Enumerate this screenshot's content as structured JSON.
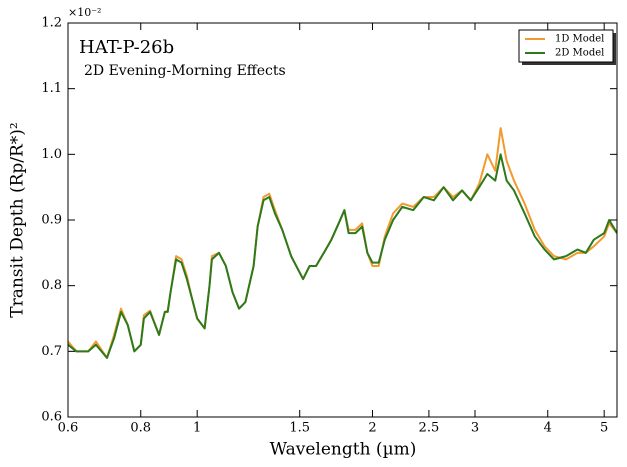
{
  "chart_data": {
    "type": "line",
    "title": "HAT-P-26b",
    "subtitle": "2D Evening-Morning Effects",
    "x_label": "Wavelength (µm)",
    "y_label": "Transit Depth (Rp/R*)²",
    "y_multiplier": "×10⁻²",
    "x_scale": "log",
    "legend": "upper right",
    "grid": false,
    "xlim": [
      0.6,
      5.26
    ],
    "xticks": [
      0.6,
      0.8,
      1,
      1.5,
      2,
      2.5,
      3,
      4,
      5
    ],
    "ylim": [
      0.6,
      1.2
    ],
    "yticks": [
      0.6,
      0.7,
      0.8,
      0.9,
      {
        "value": 1,
        "label": "1.0"
      },
      1.1,
      1.2
    ],
    "x": [
      0.6,
      0.62,
      0.65,
      0.67,
      0.7,
      0.72,
      0.74,
      0.76,
      0.78,
      0.8,
      0.81,
      0.83,
      0.86,
      0.88,
      0.89,
      0.9,
      0.92,
      0.94,
      0.96,
      0.98,
      1.0,
      1.03,
      1.05,
      1.06,
      1.09,
      1.12,
      1.15,
      1.18,
      1.21,
      1.25,
      1.27,
      1.3,
      1.33,
      1.36,
      1.4,
      1.45,
      1.52,
      1.56,
      1.6,
      1.65,
      1.7,
      1.75,
      1.79,
      1.82,
      1.87,
      1.92,
      1.96,
      2.0,
      2.05,
      2.1,
      2.17,
      2.25,
      2.35,
      2.45,
      2.55,
      2.65,
      2.75,
      2.85,
      2.95,
      3.05,
      3.15,
      3.25,
      3.32,
      3.4,
      3.5,
      3.65,
      3.8,
      3.95,
      4.1,
      4.3,
      4.5,
      4.65,
      4.8,
      5.0,
      5.1,
      5.26
    ],
    "series": [
      {
        "name": "1D Model",
        "color": "#f29a30",
        "values": [
          0.715,
          0.7,
          0.7,
          0.715,
          0.69,
          0.725,
          0.765,
          0.74,
          0.7,
          0.71,
          0.755,
          0.762,
          0.725,
          0.76,
          0.762,
          0.79,
          0.845,
          0.84,
          0.815,
          0.78,
          0.75,
          0.735,
          0.8,
          0.845,
          0.85,
          0.83,
          0.79,
          0.765,
          0.775,
          0.83,
          0.89,
          0.935,
          0.94,
          0.915,
          0.885,
          0.845,
          0.81,
          0.83,
          0.83,
          0.85,
          0.87,
          0.895,
          0.915,
          0.885,
          0.885,
          0.895,
          0.85,
          0.83,
          0.83,
          0.875,
          0.91,
          0.925,
          0.92,
          0.935,
          0.935,
          0.95,
          0.935,
          0.945,
          0.93,
          0.955,
          1.0,
          0.975,
          1.04,
          0.99,
          0.96,
          0.925,
          0.885,
          0.86,
          0.845,
          0.84,
          0.85,
          0.85,
          0.86,
          0.875,
          0.895,
          0.88
        ]
      },
      {
        "name": "2D Model",
        "color": "#2b7a1c",
        "values": [
          0.71,
          0.7,
          0.7,
          0.71,
          0.69,
          0.72,
          0.76,
          0.74,
          0.7,
          0.71,
          0.75,
          0.76,
          0.725,
          0.76,
          0.76,
          0.79,
          0.84,
          0.835,
          0.81,
          0.78,
          0.75,
          0.735,
          0.8,
          0.84,
          0.85,
          0.83,
          0.79,
          0.765,
          0.775,
          0.83,
          0.89,
          0.93,
          0.935,
          0.91,
          0.885,
          0.845,
          0.81,
          0.83,
          0.83,
          0.85,
          0.87,
          0.895,
          0.915,
          0.88,
          0.88,
          0.89,
          0.85,
          0.835,
          0.835,
          0.87,
          0.9,
          0.92,
          0.915,
          0.935,
          0.93,
          0.95,
          0.93,
          0.945,
          0.93,
          0.95,
          0.97,
          0.96,
          1.0,
          0.96,
          0.945,
          0.91,
          0.875,
          0.855,
          0.84,
          0.845,
          0.855,
          0.85,
          0.87,
          0.88,
          0.9,
          0.88
        ]
      }
    ]
  }
}
